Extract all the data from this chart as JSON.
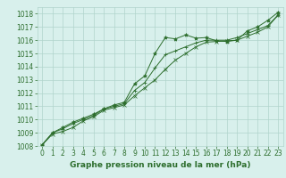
{
  "title": "Graphe pression niveau de la mer (hPa)",
  "bg_color": "#d8f0ec",
  "grid_color": "#b0d4cc",
  "line_color": "#2d6e2d",
  "marker_color": "#2d6e2d",
  "ylim": [
    1008,
    1018.5
  ],
  "yticks": [
    1008,
    1009,
    1010,
    1011,
    1012,
    1013,
    1014,
    1015,
    1016,
    1017,
    1018
  ],
  "xlim": [
    -0.5,
    23.5
  ],
  "xticks": [
    0,
    1,
    2,
    3,
    4,
    5,
    6,
    7,
    8,
    9,
    10,
    11,
    12,
    13,
    14,
    15,
    16,
    17,
    18,
    19,
    20,
    21,
    22,
    23
  ],
  "series1_x": [
    0,
    1,
    2,
    3,
    4,
    5,
    6,
    7,
    8,
    9,
    10,
    11,
    12,
    13,
    14,
    15,
    16,
    17,
    18,
    19,
    20,
    21,
    22,
    23
  ],
  "series1_y": [
    1008.1,
    1009.0,
    1009.4,
    1009.8,
    1010.1,
    1010.4,
    1010.8,
    1011.1,
    1011.3,
    1012.7,
    1013.3,
    1015.0,
    1016.2,
    1016.1,
    1016.4,
    1016.15,
    1016.2,
    1015.95,
    1015.9,
    1016.0,
    1016.7,
    1017.0,
    1017.5,
    1018.1
  ],
  "series2_x": [
    0,
    1,
    2,
    3,
    4,
    5,
    6,
    7,
    8,
    9,
    10,
    11,
    12,
    13,
    14,
    15,
    16,
    17,
    18,
    19,
    20,
    21,
    22,
    23
  ],
  "series2_y": [
    1008.1,
    1009.0,
    1009.3,
    1009.7,
    1010.0,
    1010.3,
    1010.8,
    1011.0,
    1011.2,
    1012.2,
    1012.8,
    1013.9,
    1014.9,
    1015.2,
    1015.5,
    1015.8,
    1016.0,
    1016.0,
    1016.0,
    1016.2,
    1016.5,
    1016.8,
    1017.1,
    1017.9
  ],
  "series3_x": [
    0,
    1,
    2,
    3,
    4,
    5,
    6,
    7,
    8,
    9,
    10,
    11,
    12,
    13,
    14,
    15,
    16,
    17,
    18,
    19,
    20,
    21,
    22,
    23
  ],
  "series3_y": [
    1008.1,
    1008.9,
    1009.1,
    1009.4,
    1009.9,
    1010.2,
    1010.7,
    1010.9,
    1011.1,
    1011.8,
    1012.4,
    1013.0,
    1013.8,
    1014.5,
    1015.0,
    1015.5,
    1015.85,
    1015.9,
    1015.95,
    1016.0,
    1016.3,
    1016.6,
    1017.0,
    1017.9
  ],
  "title_fontsize": 6.5,
  "tick_fontsize": 5.5
}
